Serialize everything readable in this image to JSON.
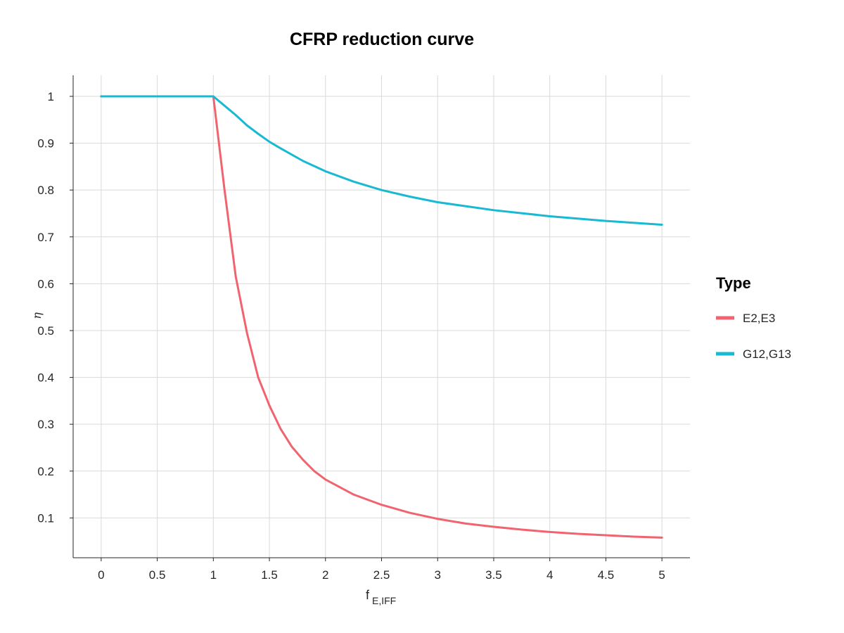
{
  "chart_data": {
    "type": "line",
    "title": "CFRP reduction curve",
    "xlabel_main": "f",
    "xlabel_sub": "E,IFF",
    "ylabel": "η",
    "xlim": [
      -0.25,
      5.25
    ],
    "ylim": [
      0.015,
      1.045
    ],
    "xticks": [
      0,
      0.5,
      1,
      1.5,
      2,
      2.5,
      3,
      3.5,
      4,
      4.5,
      5
    ],
    "xtick_labels": [
      "0",
      "0.5",
      "1",
      "1.5",
      "2",
      "2.5",
      "3",
      "3.5",
      "4",
      "4.5",
      "5"
    ],
    "yticks": [
      0.1,
      0.2,
      0.3,
      0.4,
      0.5,
      0.6,
      0.7,
      0.8,
      0.9,
      1
    ],
    "ytick_labels": [
      "0.1",
      "0.2",
      "0.3",
      "0.4",
      "0.5",
      "0.6",
      "0.7",
      "0.8",
      "0.9",
      "1"
    ],
    "grid": true,
    "legend": {
      "title": "Type",
      "placement": "right"
    },
    "series": [
      {
        "name": "E2,E3",
        "color": "#f0636f",
        "x": [
          0,
          1,
          1.1,
          1.2,
          1.3,
          1.4,
          1.5,
          1.6,
          1.7,
          1.8,
          1.9,
          2,
          2.25,
          2.5,
          2.75,
          3,
          3.25,
          3.5,
          3.75,
          4,
          4.25,
          4.5,
          4.75,
          5
        ],
        "y": [
          1,
          1,
          0.8,
          0.615,
          0.495,
          0.4,
          0.34,
          0.29,
          0.252,
          0.224,
          0.2,
          0.182,
          0.15,
          0.128,
          0.111,
          0.098,
          0.088,
          0.081,
          0.075,
          0.07,
          0.066,
          0.063,
          0.06,
          0.058
        ]
      },
      {
        "name": "G12,G13",
        "color": "#18b9d2",
        "x": [
          0,
          1,
          1.1,
          1.2,
          1.3,
          1.4,
          1.5,
          1.6,
          1.8,
          2,
          2.25,
          2.5,
          2.75,
          3,
          3.5,
          4,
          4.5,
          5
        ],
        "y": [
          1,
          1,
          0.98,
          0.96,
          0.938,
          0.92,
          0.903,
          0.889,
          0.862,
          0.84,
          0.818,
          0.8,
          0.786,
          0.774,
          0.757,
          0.744,
          0.734,
          0.726
        ]
      }
    ]
  }
}
